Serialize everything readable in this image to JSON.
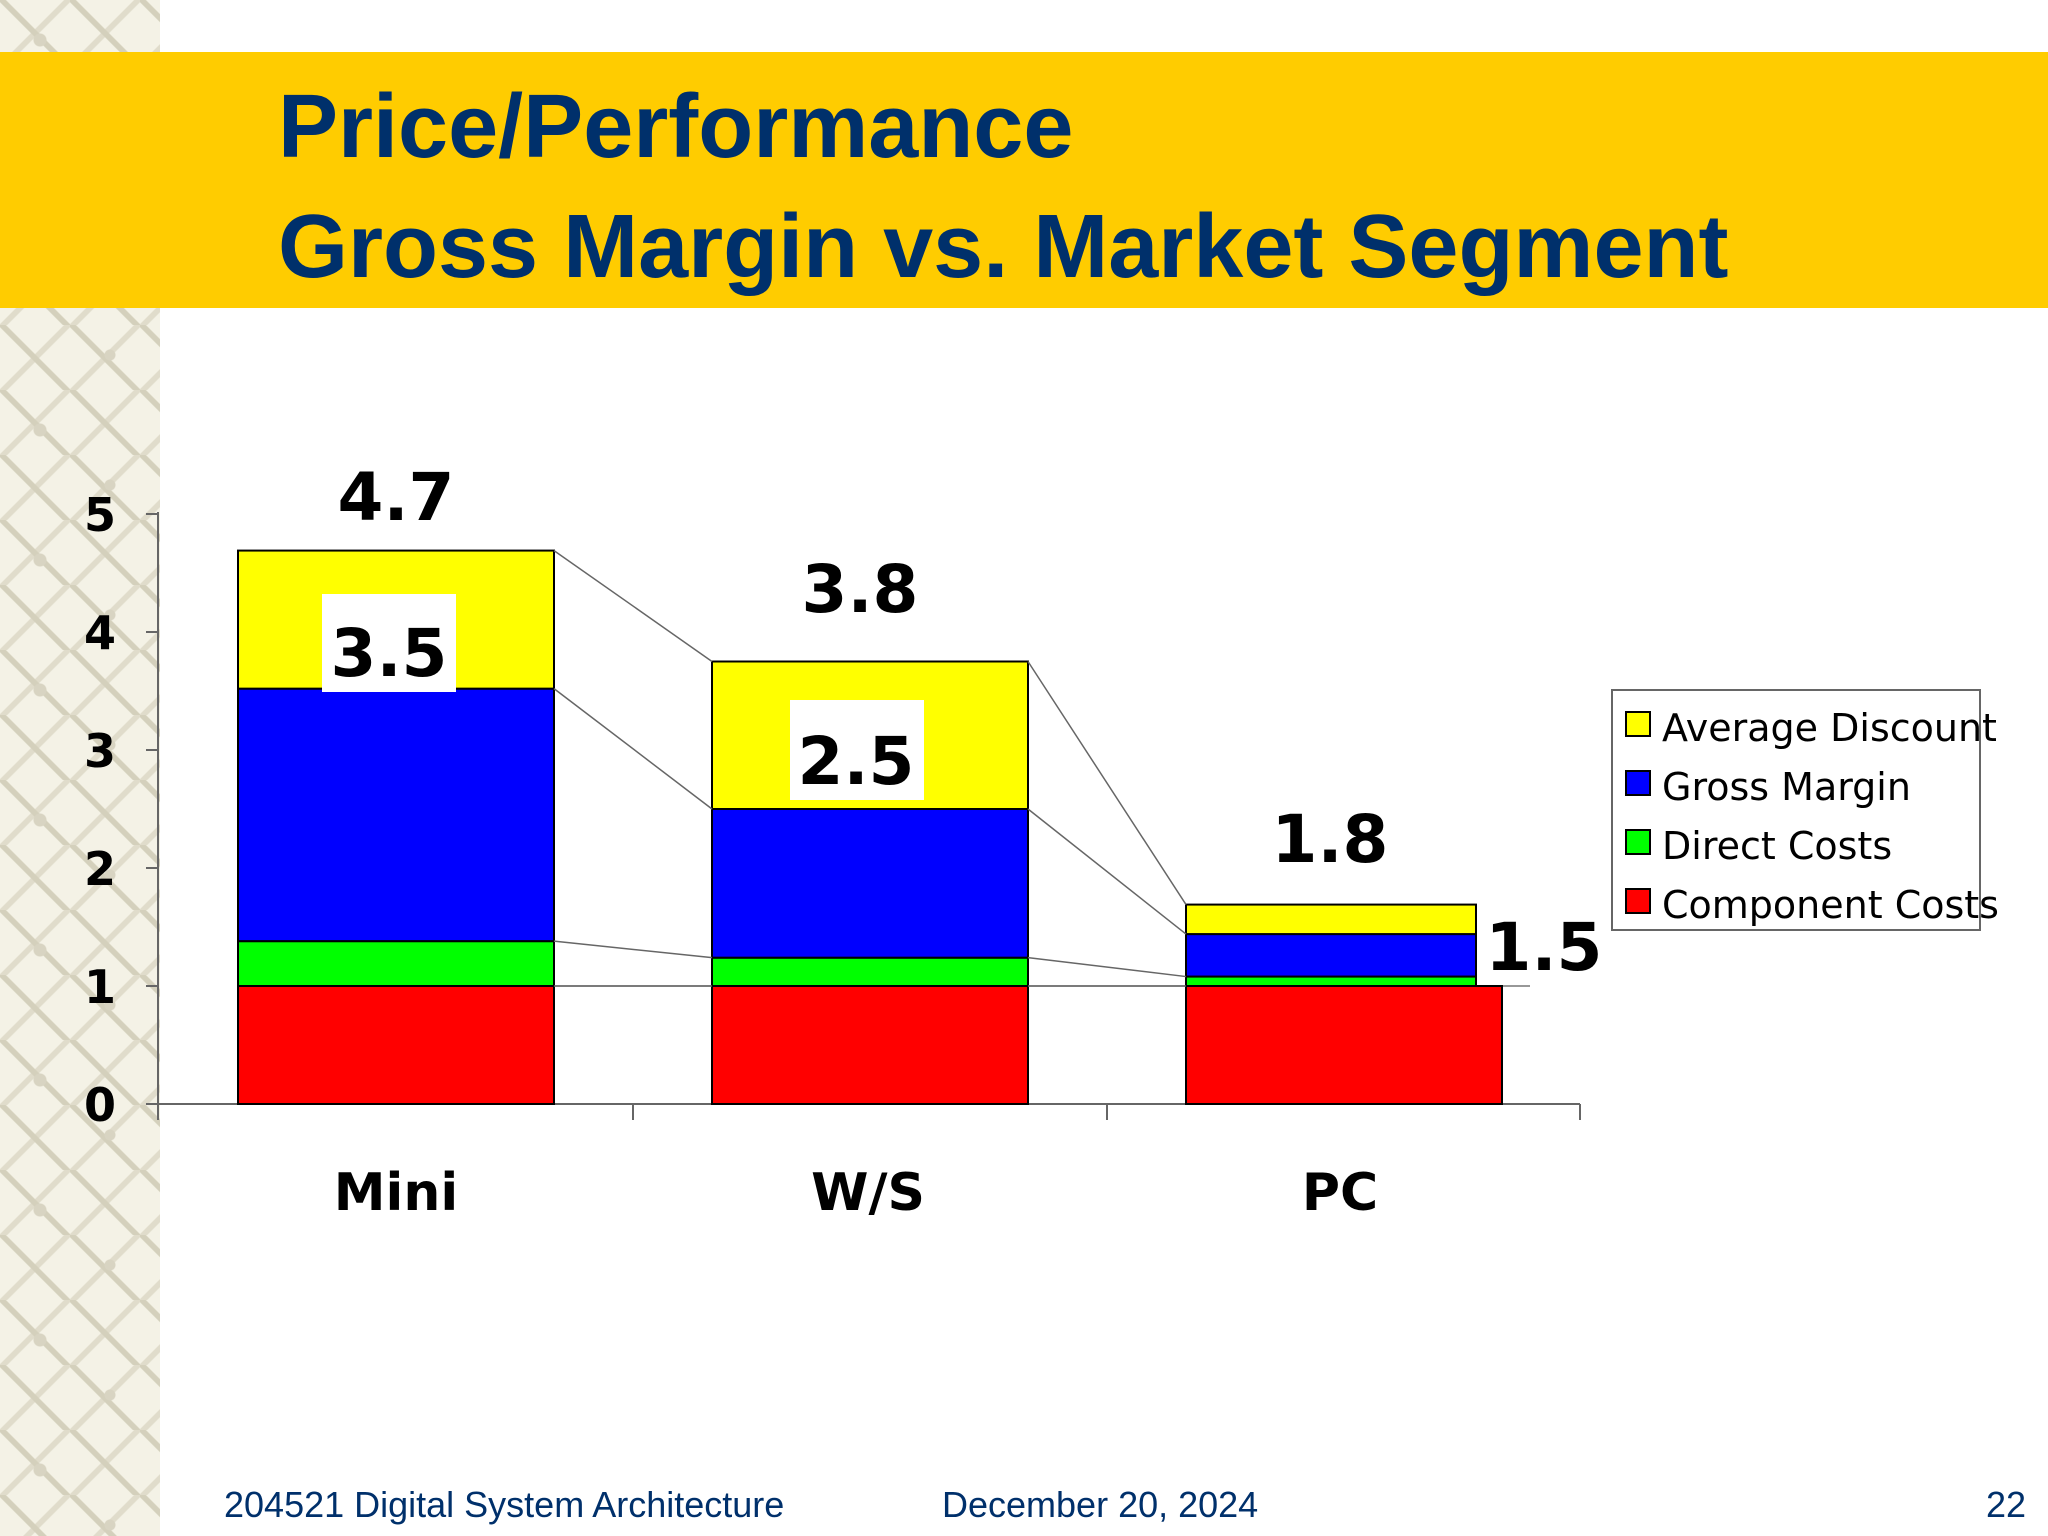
{
  "title": {
    "line1": "Price/Performance",
    "line2": "Gross Margin vs. Market Segment"
  },
  "footer": {
    "course": "204521 Digital System Architecture",
    "date": "December 20, 2024",
    "page": "22"
  },
  "colors": {
    "band": "#ffcc00",
    "title": "#00306b",
    "component_costs": "#ff0000",
    "direct_costs": "#00ff00",
    "gross_margin": "#0000ff",
    "average_discount": "#ffff00"
  },
  "chart_data": {
    "type": "bar",
    "stacked": true,
    "categories": [
      "Mini",
      "W/S",
      "PC"
    ],
    "series": [
      {
        "name": "Component Costs",
        "color": "#ff0000",
        "values": [
          1.0,
          1.0,
          1.0
        ]
      },
      {
        "name": "Direct Costs",
        "color": "#00ff00",
        "values": [
          0.38,
          0.24,
          0.08
        ]
      },
      {
        "name": "Gross Margin",
        "color": "#0000ff",
        "values": [
          2.14,
          1.26,
          0.36
        ]
      },
      {
        "name": "Average Discount",
        "color": "#ffff00",
        "values": [
          1.17,
          1.25,
          0.25
        ]
      }
    ],
    "legend_order": [
      "Average Discount",
      "Gross Margin",
      "Direct Costs",
      "Component Costs"
    ],
    "total_labels": [
      "4.7",
      "3.8",
      "1.8"
    ],
    "inner_labels": [
      "3.5",
      "2.5",
      "1.5"
    ],
    "ylim": [
      0,
      5
    ],
    "yticks": [
      "0",
      "1",
      "2",
      "3",
      "4",
      "5"
    ],
    "legend_position": "right",
    "connector_lines": true
  }
}
